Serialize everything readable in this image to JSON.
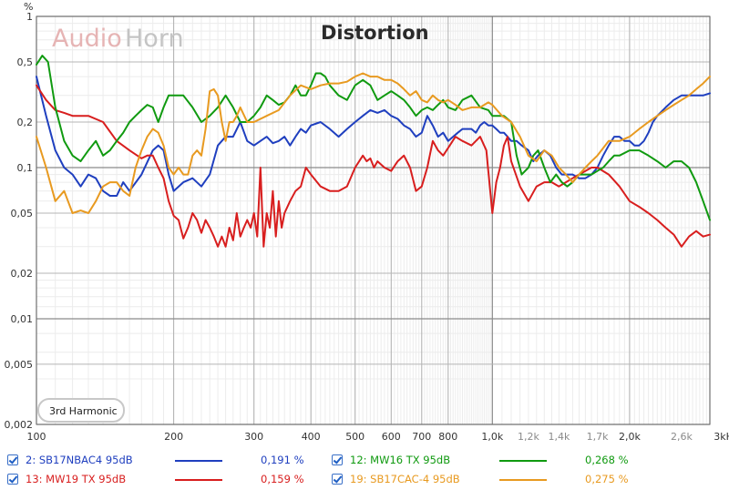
{
  "chart_data": {
    "type": "line",
    "title": "Distortion",
    "logo": {
      "part1": "Audio",
      "part2": "Horn"
    },
    "y_unit": "%",
    "x_unit": "",
    "yscale": "log",
    "xscale": "log",
    "ylim": [
      0.002,
      1
    ],
    "xlim": [
      100,
      3000
    ],
    "grid": true,
    "annotation": "3rd Harmonic",
    "y_ticks": [
      "1",
      "0,5",
      "0,2",
      "0,1",
      "0,05",
      "0,02",
      "0,01",
      "0,005",
      "0,002"
    ],
    "y_tick_values": [
      1,
      0.5,
      0.2,
      0.1,
      0.05,
      0.02,
      0.01,
      0.005,
      0.002
    ],
    "x_ticks_major": [
      "100",
      "200",
      "300",
      "400",
      "500",
      "600",
      "700",
      "800",
      "1,0k",
      "2,0k",
      "3kHz"
    ],
    "x_ticks_major_values": [
      100,
      200,
      300,
      400,
      500,
      600,
      700,
      800,
      1000,
      2000,
      3000
    ],
    "x_ticks_minor": [
      "1,2k",
      "1,4k",
      "1,7k",
      "2,6k"
    ],
    "x_ticks_minor_values": [
      1200,
      1400,
      1700,
      2600
    ],
    "series": [
      {
        "name": "2: SB17NBAC4 95dB",
        "color": "#1f3fbf",
        "legend_value": "0,191 %",
        "x": [
          100,
          105,
          110,
          115,
          120,
          125,
          130,
          135,
          140,
          145,
          150,
          155,
          160,
          170,
          180,
          185,
          190,
          195,
          200,
          210,
          220,
          230,
          240,
          250,
          260,
          270,
          280,
          290,
          300,
          310,
          320,
          330,
          340,
          350,
          360,
          370,
          380,
          390,
          400,
          420,
          440,
          460,
          480,
          500,
          520,
          540,
          560,
          580,
          600,
          620,
          640,
          660,
          680,
          700,
          720,
          740,
          760,
          780,
          800,
          820,
          840,
          860,
          880,
          900,
          920,
          940,
          960,
          980,
          1000,
          1020,
          1040,
          1060,
          1080,
          1100,
          1130,
          1160,
          1200,
          1230,
          1260,
          1300,
          1340,
          1380,
          1420,
          1460,
          1500,
          1550,
          1600,
          1650,
          1700,
          1750,
          1800,
          1850,
          1900,
          1950,
          2000,
          2050,
          2100,
          2150,
          2200,
          2250,
          2300,
          2400,
          2500,
          2600,
          2700,
          2800,
          2900,
          3000
        ],
        "y": [
          0.4,
          0.22,
          0.13,
          0.1,
          0.09,
          0.075,
          0.09,
          0.085,
          0.07,
          0.065,
          0.065,
          0.08,
          0.07,
          0.09,
          0.13,
          0.14,
          0.13,
          0.09,
          0.07,
          0.08,
          0.085,
          0.075,
          0.09,
          0.14,
          0.16,
          0.16,
          0.2,
          0.15,
          0.14,
          0.15,
          0.16,
          0.145,
          0.15,
          0.16,
          0.14,
          0.16,
          0.18,
          0.17,
          0.19,
          0.2,
          0.18,
          0.16,
          0.18,
          0.2,
          0.22,
          0.24,
          0.23,
          0.24,
          0.22,
          0.21,
          0.19,
          0.18,
          0.16,
          0.17,
          0.22,
          0.19,
          0.16,
          0.17,
          0.15,
          0.16,
          0.17,
          0.18,
          0.18,
          0.18,
          0.17,
          0.19,
          0.2,
          0.19,
          0.19,
          0.18,
          0.17,
          0.17,
          0.16,
          0.15,
          0.15,
          0.14,
          0.13,
          0.11,
          0.12,
          0.13,
          0.12,
          0.1,
          0.09,
          0.09,
          0.09,
          0.085,
          0.085,
          0.09,
          0.1,
          0.12,
          0.14,
          0.16,
          0.16,
          0.15,
          0.15,
          0.14,
          0.14,
          0.15,
          0.17,
          0.2,
          0.22,
          0.25,
          0.28,
          0.3,
          0.3,
          0.3,
          0.3,
          0.31
        ]
      },
      {
        "name": "13: MW19 TX 95dB",
        "color": "#d81e1e",
        "legend_value": "0,159 %",
        "x": [
          100,
          105,
          110,
          115,
          120,
          130,
          140,
          150,
          160,
          170,
          175,
          180,
          185,
          190,
          195,
          200,
          205,
          210,
          215,
          220,
          225,
          230,
          235,
          240,
          245,
          250,
          255,
          260,
          265,
          270,
          275,
          280,
          285,
          290,
          295,
          300,
          305,
          310,
          315,
          320,
          325,
          330,
          335,
          340,
          345,
          350,
          360,
          370,
          380,
          390,
          400,
          420,
          440,
          460,
          480,
          500,
          520,
          530,
          540,
          550,
          560,
          580,
          600,
          620,
          640,
          660,
          680,
          700,
          720,
          740,
          760,
          780,
          800,
          830,
          860,
          900,
          940,
          970,
          1000,
          1020,
          1040,
          1060,
          1080,
          1100,
          1150,
          1200,
          1250,
          1300,
          1350,
          1400,
          1450,
          1500,
          1550,
          1600,
          1650,
          1700,
          1800,
          1900,
          2000,
          2100,
          2200,
          2300,
          2400,
          2500,
          2600,
          2700,
          2800,
          2900,
          3000
        ],
        "y": [
          0.35,
          0.28,
          0.24,
          0.23,
          0.22,
          0.22,
          0.2,
          0.15,
          0.13,
          0.115,
          0.12,
          0.12,
          0.1,
          0.085,
          0.06,
          0.048,
          0.045,
          0.034,
          0.04,
          0.05,
          0.045,
          0.037,
          0.045,
          0.04,
          0.035,
          0.03,
          0.035,
          0.03,
          0.04,
          0.033,
          0.05,
          0.035,
          0.04,
          0.045,
          0.04,
          0.05,
          0.035,
          0.1,
          0.03,
          0.05,
          0.04,
          0.07,
          0.035,
          0.06,
          0.04,
          0.05,
          0.06,
          0.07,
          0.075,
          0.1,
          0.09,
          0.075,
          0.07,
          0.07,
          0.075,
          0.1,
          0.12,
          0.11,
          0.115,
          0.1,
          0.11,
          0.1,
          0.095,
          0.11,
          0.12,
          0.1,
          0.07,
          0.075,
          0.1,
          0.15,
          0.13,
          0.12,
          0.135,
          0.16,
          0.15,
          0.14,
          0.16,
          0.13,
          0.05,
          0.08,
          0.1,
          0.14,
          0.16,
          0.11,
          0.075,
          0.06,
          0.075,
          0.08,
          0.08,
          0.075,
          0.08,
          0.085,
          0.09,
          0.095,
          0.1,
          0.1,
          0.09,
          0.075,
          0.06,
          0.055,
          0.05,
          0.045,
          0.04,
          0.036,
          0.03,
          0.035,
          0.038,
          0.035,
          0.036
        ]
      },
      {
        "name": "12: MW16 TX 95dB",
        "color": "#109a10",
        "legend_value": "0,268 %",
        "x": [
          100,
          103,
          106,
          110,
          115,
          120,
          125,
          130,
          135,
          140,
          145,
          150,
          155,
          160,
          165,
          170,
          175,
          180,
          185,
          190,
          195,
          200,
          210,
          220,
          230,
          240,
          250,
          260,
          270,
          280,
          290,
          300,
          310,
          320,
          330,
          340,
          350,
          360,
          370,
          380,
          390,
          400,
          410,
          420,
          430,
          440,
          460,
          480,
          500,
          520,
          540,
          560,
          580,
          600,
          620,
          640,
          660,
          680,
          700,
          720,
          740,
          760,
          780,
          800,
          830,
          860,
          900,
          940,
          980,
          1000,
          1030,
          1060,
          1100,
          1130,
          1160,
          1200,
          1230,
          1260,
          1300,
          1340,
          1380,
          1420,
          1460,
          1500,
          1550,
          1600,
          1650,
          1700,
          1750,
          1800,
          1850,
          1900,
          2000,
          2100,
          2200,
          2300,
          2400,
          2500,
          2600,
          2700,
          2800,
          2900,
          3000
        ],
        "y": [
          0.48,
          0.55,
          0.5,
          0.25,
          0.15,
          0.12,
          0.11,
          0.13,
          0.15,
          0.12,
          0.13,
          0.15,
          0.17,
          0.2,
          0.22,
          0.24,
          0.26,
          0.25,
          0.2,
          0.25,
          0.3,
          0.3,
          0.3,
          0.25,
          0.2,
          0.22,
          0.25,
          0.3,
          0.25,
          0.2,
          0.2,
          0.22,
          0.25,
          0.3,
          0.28,
          0.26,
          0.27,
          0.3,
          0.35,
          0.3,
          0.3,
          0.35,
          0.42,
          0.42,
          0.4,
          0.35,
          0.3,
          0.28,
          0.35,
          0.38,
          0.35,
          0.28,
          0.3,
          0.32,
          0.3,
          0.28,
          0.25,
          0.22,
          0.24,
          0.25,
          0.24,
          0.26,
          0.28,
          0.25,
          0.24,
          0.28,
          0.3,
          0.25,
          0.24,
          0.22,
          0.22,
          0.22,
          0.2,
          0.12,
          0.09,
          0.1,
          0.12,
          0.13,
          0.1,
          0.08,
          0.09,
          0.08,
          0.075,
          0.08,
          0.09,
          0.09,
          0.09,
          0.095,
          0.1,
          0.11,
          0.12,
          0.12,
          0.13,
          0.13,
          0.12,
          0.11,
          0.1,
          0.11,
          0.11,
          0.1,
          0.08,
          0.06,
          0.045
        ]
      },
      {
        "name": "19: SB17CAC-4 95dB",
        "color": "#e89a20",
        "legend_value": "0,275 %",
        "x": [
          100,
          105,
          110,
          115,
          120,
          125,
          130,
          135,
          140,
          145,
          150,
          155,
          160,
          165,
          170,
          175,
          180,
          185,
          190,
          195,
          200,
          205,
          210,
          215,
          220,
          225,
          230,
          235,
          240,
          245,
          250,
          255,
          260,
          265,
          270,
          275,
          280,
          290,
          300,
          320,
          340,
          360,
          380,
          400,
          420,
          440,
          460,
          480,
          500,
          520,
          540,
          560,
          580,
          600,
          620,
          640,
          660,
          680,
          700,
          720,
          740,
          760,
          780,
          800,
          830,
          860,
          900,
          940,
          980,
          1000,
          1050,
          1100,
          1150,
          1200,
          1250,
          1300,
          1350,
          1400,
          1450,
          1500,
          1550,
          1600,
          1650,
          1700,
          1800,
          1900,
          2000,
          2100,
          2200,
          2300,
          2400,
          2500,
          2600,
          2700,
          2800,
          2900,
          3000
        ],
        "y": [
          0.16,
          0.1,
          0.06,
          0.07,
          0.05,
          0.052,
          0.05,
          0.06,
          0.075,
          0.08,
          0.08,
          0.07,
          0.065,
          0.1,
          0.13,
          0.16,
          0.18,
          0.17,
          0.14,
          0.1,
          0.09,
          0.1,
          0.09,
          0.09,
          0.12,
          0.13,
          0.12,
          0.18,
          0.32,
          0.33,
          0.3,
          0.2,
          0.15,
          0.2,
          0.2,
          0.22,
          0.25,
          0.2,
          0.2,
          0.22,
          0.24,
          0.3,
          0.35,
          0.33,
          0.35,
          0.36,
          0.36,
          0.37,
          0.4,
          0.42,
          0.4,
          0.4,
          0.38,
          0.38,
          0.36,
          0.33,
          0.3,
          0.32,
          0.28,
          0.27,
          0.3,
          0.28,
          0.27,
          0.28,
          0.26,
          0.24,
          0.25,
          0.25,
          0.27,
          0.26,
          0.22,
          0.2,
          0.16,
          0.12,
          0.11,
          0.13,
          0.12,
          0.1,
          0.09,
          0.08,
          0.09,
          0.1,
          0.11,
          0.12,
          0.15,
          0.15,
          0.16,
          0.18,
          0.2,
          0.22,
          0.24,
          0.26,
          0.28,
          0.3,
          0.33,
          0.36,
          0.4
        ]
      }
    ]
  }
}
